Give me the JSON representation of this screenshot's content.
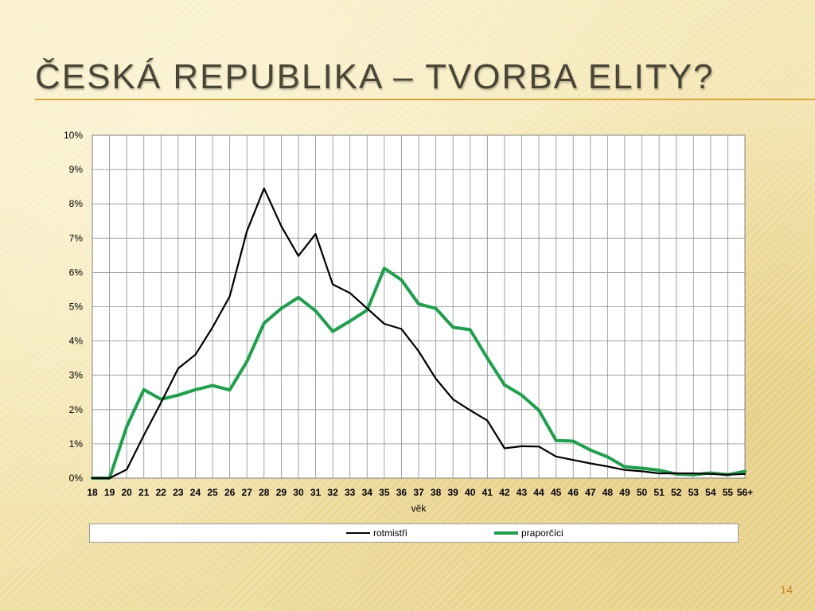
{
  "slide": {
    "title": "ČESKÁ REPUBLIKA – TVORBA ELITY?",
    "page_number": "14"
  },
  "colors": {
    "rotmistri": "#000000",
    "praporcici": "#1aa24a",
    "title": "#4a4637",
    "accent": "#d9a43a"
  },
  "chart_data": {
    "type": "line",
    "xlabel": "věk",
    "ylabel": "",
    "categories": [
      "18",
      "19",
      "20",
      "21",
      "22",
      "23",
      "24",
      "25",
      "26",
      "27",
      "28",
      "29",
      "30",
      "31",
      "32",
      "33",
      "34",
      "35",
      "36",
      "37",
      "38",
      "39",
      "40",
      "41",
      "42",
      "43",
      "44",
      "45",
      "46",
      "47",
      "48",
      "49",
      "50",
      "51",
      "52",
      "53",
      "54",
      "55",
      "56+"
    ],
    "ylim": [
      0,
      10
    ],
    "yticks": [
      "0%",
      "1%",
      "2%",
      "3%",
      "4%",
      "5%",
      "6%",
      "7%",
      "8%",
      "9%",
      "10%"
    ],
    "grid": true,
    "legend_position": "bottom",
    "series": [
      {
        "name": "rotmistři",
        "values": [
          0,
          0,
          0.25,
          1.25,
          2.2,
          3.2,
          3.6,
          4.4,
          5.3,
          7.2,
          8.45,
          7.35,
          6.48,
          7.12,
          5.65,
          5.4,
          4.95,
          4.5,
          4.35,
          3.7,
          2.9,
          2.3,
          1.98,
          1.68,
          0.87,
          0.93,
          0.92,
          0.63,
          0.53,
          0.43,
          0.34,
          0.24,
          0.2,
          0.14,
          0.14,
          0.14,
          0.12,
          0.1,
          0.12
        ]
      },
      {
        "name": "praporčíci",
        "values": [
          0,
          0,
          1.5,
          2.58,
          2.3,
          2.42,
          2.58,
          2.7,
          2.57,
          3.4,
          4.52,
          4.95,
          5.27,
          4.88,
          4.28,
          4.58,
          4.9,
          6.12,
          5.78,
          5.08,
          4.95,
          4.4,
          4.33,
          3.5,
          2.72,
          2.42,
          1.98,
          1.1,
          1.08,
          0.82,
          0.62,
          0.33,
          0.29,
          0.23,
          0.12,
          0.1,
          0.15,
          0.1,
          0.2
        ]
      }
    ]
  }
}
